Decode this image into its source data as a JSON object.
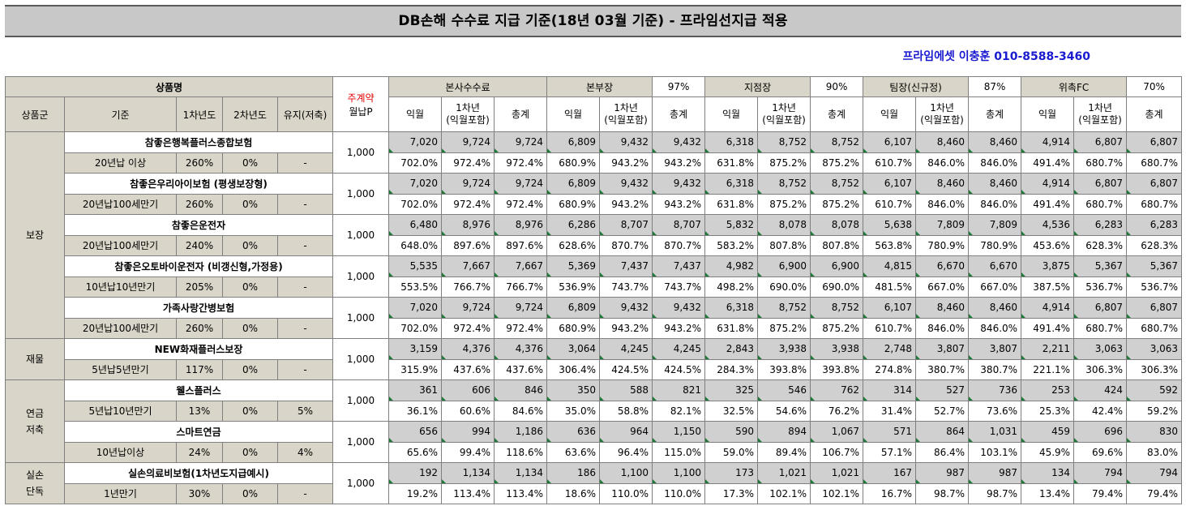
{
  "title": "DB손해 수수료 지급 기준(18년 03월 기준) - 프라임선지급 적용",
  "contact": "프라임에셋 이충훈 010-8588-3460",
  "header": {
    "product_group_label": "상품명",
    "premium_label_line1": "주계약",
    "premium_label_line2": "월납P",
    "sub_cols": [
      "상품군",
      "기준",
      "1차년도",
      "2차년도",
      "유지(저축)"
    ],
    "channels": [
      {
        "name": "본사수수료",
        "rate": ""
      },
      {
        "name": "본부장",
        "rate": "97%"
      },
      {
        "name": "지점장",
        "rate": "90%"
      },
      {
        "name": "팀장(신규정)",
        "rate": "87%"
      },
      {
        "name": "위촉FC",
        "rate": "70%"
      }
    ],
    "metric_cols": [
      "익월",
      "1차년\n(익월포함)",
      "총계"
    ]
  },
  "groups": [
    {
      "name": "보장",
      "products": [
        {
          "name": "참좋은행복플러스종합보험",
          "basis": "20년납 이상",
          "y1": "260%",
          "y2": "0%",
          "keep": "-",
          "premium": "1,000",
          "amounts": [
            "7,020",
            "9,724",
            "9,724",
            "6,809",
            "9,432",
            "9,432",
            "6,318",
            "8,752",
            "8,752",
            "6,107",
            "8,460",
            "8,460",
            "4,914",
            "6,807",
            "6,807"
          ],
          "percents": [
            "702.0%",
            "972.4%",
            "972.4%",
            "680.9%",
            "943.2%",
            "943.2%",
            "631.8%",
            "875.2%",
            "875.2%",
            "610.7%",
            "846.0%",
            "846.0%",
            "491.4%",
            "680.7%",
            "680.7%"
          ]
        },
        {
          "name": "참좋은우리아이보험 (평생보장형)",
          "basis": "20년납100세만기",
          "y1": "260%",
          "y2": "0%",
          "keep": "-",
          "premium": "1,000",
          "amounts": [
            "7,020",
            "9,724",
            "9,724",
            "6,809",
            "9,432",
            "9,432",
            "6,318",
            "8,752",
            "8,752",
            "6,107",
            "8,460",
            "8,460",
            "4,914",
            "6,807",
            "6,807"
          ],
          "percents": [
            "702.0%",
            "972.4%",
            "972.4%",
            "680.9%",
            "943.2%",
            "943.2%",
            "631.8%",
            "875.2%",
            "875.2%",
            "610.7%",
            "846.0%",
            "846.0%",
            "491.4%",
            "680.7%",
            "680.7%"
          ]
        },
        {
          "name": "참좋은운전자",
          "basis": "20년납100세만기",
          "y1": "240%",
          "y2": "0%",
          "keep": "-",
          "premium": "1,000",
          "amounts": [
            "6,480",
            "8,976",
            "8,976",
            "6,286",
            "8,707",
            "8,707",
            "5,832",
            "8,078",
            "8,078",
            "5,638",
            "7,809",
            "7,809",
            "4,536",
            "6,283",
            "6,283"
          ],
          "percents": [
            "648.0%",
            "897.6%",
            "897.6%",
            "628.6%",
            "870.7%",
            "870.7%",
            "583.2%",
            "807.8%",
            "807.8%",
            "563.8%",
            "780.9%",
            "780.9%",
            "453.6%",
            "628.3%",
            "628.3%"
          ]
        },
        {
          "name": "참좋은오토바이운전자 (비갱신형,가정용)",
          "basis": "10년납10년만기",
          "y1": "205%",
          "y2": "0%",
          "keep": "-",
          "premium": "1,000",
          "amounts": [
            "5,535",
            "7,667",
            "7,667",
            "5,369",
            "7,437",
            "7,437",
            "4,982",
            "6,900",
            "6,900",
            "4,815",
            "6,670",
            "6,670",
            "3,875",
            "5,367",
            "5,367"
          ],
          "percents": [
            "553.5%",
            "766.7%",
            "766.7%",
            "536.9%",
            "743.7%",
            "743.7%",
            "498.2%",
            "690.0%",
            "690.0%",
            "481.5%",
            "667.0%",
            "667.0%",
            "387.5%",
            "536.7%",
            "536.7%"
          ]
        },
        {
          "name": "가족사랑간병보험",
          "basis": "20년납100세만기",
          "y1": "260%",
          "y2": "0%",
          "keep": "-",
          "premium": "1,000",
          "amounts": [
            "7,020",
            "9,724",
            "9,724",
            "6,809",
            "9,432",
            "9,432",
            "6,318",
            "8,752",
            "8,752",
            "6,107",
            "8,460",
            "8,460",
            "4,914",
            "6,807",
            "6,807"
          ],
          "percents": [
            "702.0%",
            "972.4%",
            "972.4%",
            "680.9%",
            "943.2%",
            "943.2%",
            "631.8%",
            "875.2%",
            "875.2%",
            "610.7%",
            "846.0%",
            "846.0%",
            "491.4%",
            "680.7%",
            "680.7%"
          ]
        }
      ]
    },
    {
      "name": "재물",
      "products": [
        {
          "name": "NEW화재플러스보장",
          "basis": "5년납5년만기",
          "y1": "117%",
          "y2": "0%",
          "keep": "-",
          "premium": "1,000",
          "amounts": [
            "3,159",
            "4,376",
            "4,376",
            "3,064",
            "4,245",
            "4,245",
            "2,843",
            "3,938",
            "3,938",
            "2,748",
            "3,807",
            "3,807",
            "2,211",
            "3,063",
            "3,063"
          ],
          "percents": [
            "315.9%",
            "437.6%",
            "437.6%",
            "306.4%",
            "424.5%",
            "424.5%",
            "284.3%",
            "393.8%",
            "393.8%",
            "274.8%",
            "380.7%",
            "380.7%",
            "221.1%",
            "306.3%",
            "306.3%"
          ]
        }
      ]
    },
    {
      "name": "연금\n저축",
      "products": [
        {
          "name": "웰스플러스",
          "basis": "5년납10년만기",
          "y1": "13%",
          "y2": "0%",
          "keep": "5%",
          "premium": "1,000",
          "amounts": [
            "361",
            "606",
            "846",
            "350",
            "588",
            "821",
            "325",
            "546",
            "762",
            "314",
            "527",
            "736",
            "253",
            "424",
            "592"
          ],
          "percents": [
            "36.1%",
            "60.6%",
            "84.6%",
            "35.0%",
            "58.8%",
            "82.1%",
            "32.5%",
            "54.6%",
            "76.2%",
            "31.4%",
            "52.7%",
            "73.6%",
            "25.3%",
            "42.4%",
            "59.2%"
          ]
        },
        {
          "name": "스마트연금",
          "basis": "10년납이상",
          "y1": "24%",
          "y2": "0%",
          "keep": "4%",
          "premium": "1,000",
          "amounts": [
            "656",
            "994",
            "1,186",
            "636",
            "964",
            "1,150",
            "590",
            "894",
            "1,067",
            "571",
            "864",
            "1,031",
            "459",
            "696",
            "830"
          ],
          "percents": [
            "65.6%",
            "99.4%",
            "118.6%",
            "63.6%",
            "96.4%",
            "115.0%",
            "59.0%",
            "89.4%",
            "106.7%",
            "57.1%",
            "86.4%",
            "103.1%",
            "45.9%",
            "69.6%",
            "83.0%"
          ]
        }
      ]
    },
    {
      "name": "실손\n단독",
      "products": [
        {
          "name": "실손의료비보험(1차년도지급예시)",
          "basis": "1년만기",
          "y1": "30%",
          "y2": "0%",
          "keep": "-",
          "premium": "1,000",
          "amounts": [
            "192",
            "1,134",
            "1,134",
            "186",
            "1,100",
            "1,100",
            "173",
            "1,021",
            "1,021",
            "167",
            "987",
            "987",
            "134",
            "794",
            "794"
          ],
          "percents": [
            "19.2%",
            "113.4%",
            "113.4%",
            "18.6%",
            "110.0%",
            "110.0%",
            "17.3%",
            "102.1%",
            "102.1%",
            "16.7%",
            "98.7%",
            "98.7%",
            "13.4%",
            "79.4%",
            "79.4%"
          ]
        }
      ]
    }
  ]
}
